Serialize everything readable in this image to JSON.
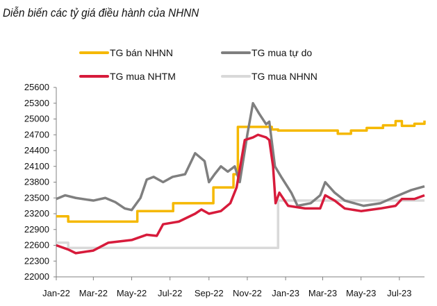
{
  "chart_data": {
    "type": "line",
    "title": "Diễn biến các tỷ giá điều hành của NHNN",
    "xlabel": "",
    "ylabel": "",
    "ylim": [
      22000,
      25600
    ],
    "yticks": [
      "25600",
      "25300",
      "25000",
      "24700",
      "24400",
      "24100",
      "23800",
      "23500",
      "23200",
      "22900",
      "22600",
      "22300",
      "22000"
    ],
    "xticks": [
      {
        "label": "Jan-22",
        "date": "2022-01-01"
      },
      {
        "label": "Mar-22",
        "date": "2022-03-01"
      },
      {
        "label": "May-22",
        "date": "2022-05-01"
      },
      {
        "label": "Jul-22",
        "date": "2022-07-01"
      },
      {
        "label": "Sep-22",
        "date": "2022-09-01"
      },
      {
        "label": "Nov-22",
        "date": "2022-11-01"
      },
      {
        "label": "Jan-23",
        "date": "2023-01-01"
      },
      {
        "label": "Mar-23",
        "date": "2023-03-01"
      },
      {
        "label": "May-23",
        "date": "2023-05-01"
      },
      {
        "label": "Jul-23",
        "date": "2023-07-01"
      }
    ],
    "xlim": [
      "2022-01-01",
      "2023-08-10"
    ],
    "grid": false,
    "legend_position": "top",
    "series": [
      {
        "name": "TG bán NHNN",
        "color": "#F5B800",
        "step": true,
        "points": [
          [
            "2022-01-01",
            23150
          ],
          [
            "2022-01-20",
            23050
          ],
          [
            "2022-05-10",
            23250
          ],
          [
            "2022-07-06",
            23400
          ],
          [
            "2022-09-08",
            23700
          ],
          [
            "2022-10-10",
            23950
          ],
          [
            "2022-10-17",
            24850
          ],
          [
            "2022-12-10",
            24800
          ],
          [
            "2022-12-20",
            24780
          ],
          [
            "2023-03-15",
            24780
          ],
          [
            "2023-03-25",
            24720
          ],
          [
            "2023-04-15",
            24780
          ],
          [
            "2023-05-10",
            24830
          ],
          [
            "2023-06-05",
            24880
          ],
          [
            "2023-06-25",
            24960
          ],
          [
            "2023-07-05",
            24870
          ],
          [
            "2023-07-25",
            24910
          ],
          [
            "2023-08-10",
            24970
          ]
        ]
      },
      {
        "name": "TG mua tự do",
        "color": "#7F7F7F",
        "step": false,
        "points": [
          [
            "2022-01-01",
            23480
          ],
          [
            "2022-01-15",
            23550
          ],
          [
            "2022-02-01",
            23500
          ],
          [
            "2022-03-01",
            23450
          ],
          [
            "2022-03-20",
            23500
          ],
          [
            "2022-04-05",
            23420
          ],
          [
            "2022-04-20",
            23300
          ],
          [
            "2022-05-01",
            23270
          ],
          [
            "2022-05-15",
            23500
          ],
          [
            "2022-05-25",
            23850
          ],
          [
            "2022-06-05",
            23900
          ],
          [
            "2022-06-20",
            23800
          ],
          [
            "2022-07-05",
            23900
          ],
          [
            "2022-07-25",
            23950
          ],
          [
            "2022-08-10",
            24350
          ],
          [
            "2022-08-25",
            24200
          ],
          [
            "2022-09-01",
            23800
          ],
          [
            "2022-09-10",
            23950
          ],
          [
            "2022-09-20",
            24100
          ],
          [
            "2022-10-01",
            24000
          ],
          [
            "2022-10-12",
            24100
          ],
          [
            "2022-10-20",
            23800
          ],
          [
            "2022-11-01",
            24700
          ],
          [
            "2022-11-10",
            25300
          ],
          [
            "2022-11-20",
            25100
          ],
          [
            "2022-12-01",
            24900
          ],
          [
            "2022-12-06",
            24950
          ],
          [
            "2022-12-15",
            24100
          ],
          [
            "2022-12-25",
            23900
          ],
          [
            "2023-01-10",
            23600
          ],
          [
            "2023-01-20",
            23350
          ],
          [
            "2023-02-10",
            23400
          ],
          [
            "2023-02-25",
            23550
          ],
          [
            "2023-03-05",
            23800
          ],
          [
            "2023-03-20",
            23600
          ],
          [
            "2023-04-05",
            23450
          ],
          [
            "2023-04-20",
            23400
          ],
          [
            "2023-05-05",
            23350
          ],
          [
            "2023-06-01",
            23400
          ],
          [
            "2023-06-20",
            23500
          ],
          [
            "2023-07-10",
            23600
          ],
          [
            "2023-07-20",
            23650
          ],
          [
            "2023-08-10",
            23720
          ]
        ]
      },
      {
        "name": "TG mua NHTM",
        "color": "#D71B3B",
        "step": false,
        "points": [
          [
            "2022-01-01",
            22600
          ],
          [
            "2022-01-20",
            22520
          ],
          [
            "2022-02-01",
            22450
          ],
          [
            "2022-03-01",
            22500
          ],
          [
            "2022-03-25",
            22650
          ],
          [
            "2022-05-01",
            22700
          ],
          [
            "2022-05-25",
            22800
          ],
          [
            "2022-06-10",
            22780
          ],
          [
            "2022-06-20",
            23000
          ],
          [
            "2022-07-15",
            23050
          ],
          [
            "2022-08-10",
            23200
          ],
          [
            "2022-08-20",
            23280
          ],
          [
            "2022-09-01",
            23200
          ],
          [
            "2022-09-20",
            23250
          ],
          [
            "2022-10-05",
            23400
          ],
          [
            "2022-10-15",
            23700
          ],
          [
            "2022-10-28",
            24600
          ],
          [
            "2022-11-10",
            24650
          ],
          [
            "2022-11-18",
            24700
          ],
          [
            "2022-12-01",
            24650
          ],
          [
            "2022-12-06",
            24600
          ],
          [
            "2022-12-12",
            24100
          ],
          [
            "2022-12-16",
            23400
          ],
          [
            "2022-12-22",
            23600
          ],
          [
            "2023-01-05",
            23350
          ],
          [
            "2023-02-01",
            23300
          ],
          [
            "2023-02-25",
            23300
          ],
          [
            "2023-03-05",
            23550
          ],
          [
            "2023-03-20",
            23450
          ],
          [
            "2023-04-05",
            23300
          ],
          [
            "2023-05-01",
            23250
          ],
          [
            "2023-06-01",
            23300
          ],
          [
            "2023-06-25",
            23350
          ],
          [
            "2023-07-05",
            23480
          ],
          [
            "2023-07-25",
            23480
          ],
          [
            "2023-08-10",
            23550
          ]
        ]
      },
      {
        "name": "TG mua NHNN",
        "color": "#D9D9D9",
        "step": true,
        "points": [
          [
            "2022-01-01",
            22650
          ],
          [
            "2022-01-20",
            22550
          ],
          [
            "2022-12-20",
            23450
          ],
          [
            "2023-08-10",
            23450
          ]
        ]
      }
    ]
  }
}
